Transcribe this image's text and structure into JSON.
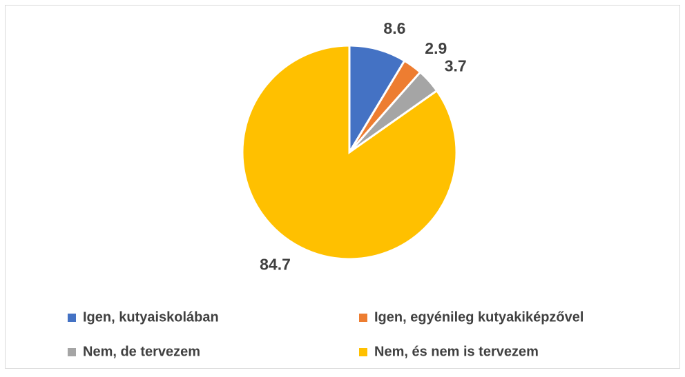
{
  "chart_data": {
    "type": "pie",
    "categories": [
      "Igen, kutyaiskolában",
      "Igen, egyénileg kutyakiképzővel",
      "Nem, de tervezem",
      "Nem, és nem is tervezem"
    ],
    "values": [
      8.6,
      2.9,
      3.7,
      84.7
    ],
    "colors": [
      "#4472c4",
      "#ed7d31",
      "#a5a5a5",
      "#ffc000"
    ],
    "legend": "bottom"
  }
}
